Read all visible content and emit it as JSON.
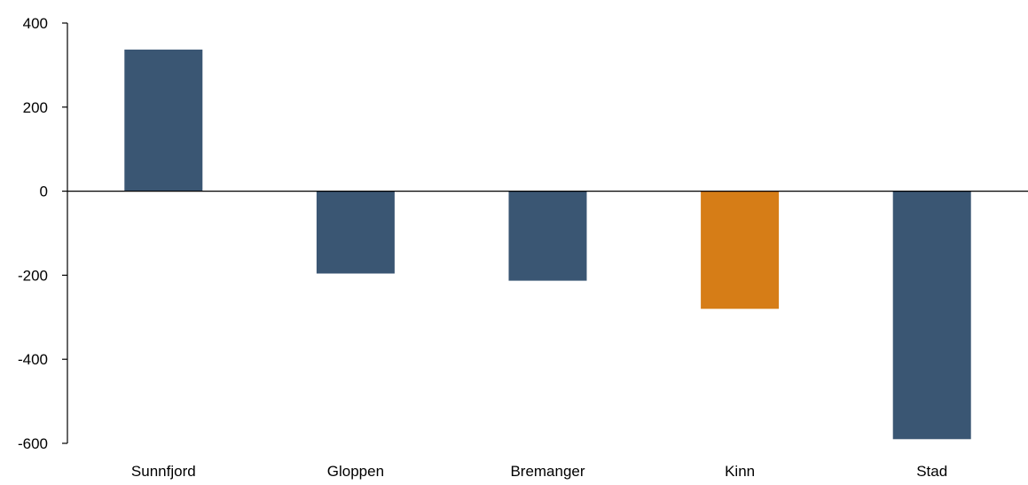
{
  "chart_data": {
    "type": "bar",
    "title": "",
    "xlabel": "",
    "ylabel": "",
    "categories": [
      "Sunnfjord",
      "Gloppen",
      "Bremanger",
      "Kinn",
      "Stad"
    ],
    "values": [
      337,
      -196,
      -213,
      -280,
      -590
    ],
    "ylim": [
      -600,
      400
    ],
    "yticks": [
      400,
      200,
      0,
      -200,
      -400,
      -600
    ],
    "ytick_labels": [
      "400",
      "200",
      "0",
      "-200",
      "-400",
      "-600"
    ],
    "grid": false,
    "legend": "none",
    "colors": {
      "default_bar": "#3a5673",
      "highlight_bar": "#d67d17",
      "axis": "#000000"
    },
    "highlight_category": "Kinn"
  }
}
